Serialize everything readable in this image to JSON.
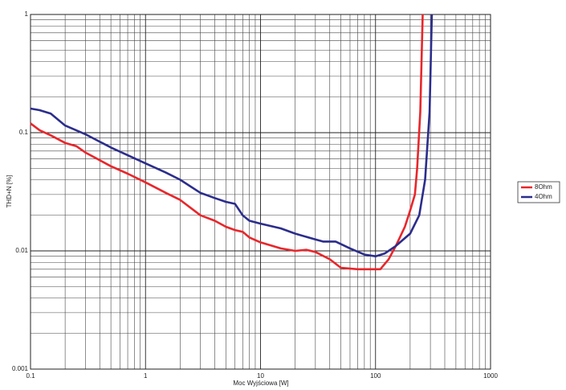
{
  "chart_data": {
    "type": "line",
    "x_label": "Moc Wyjściowa [W]",
    "y_label": "THD+N [%]",
    "xlim": [
      0.1,
      1000
    ],
    "ylim": [
      0.001,
      1
    ],
    "xticks": [
      0.1,
      1,
      10,
      100,
      1000
    ],
    "yticks": [
      0.001,
      0.01,
      0.1,
      1
    ],
    "xscale": "log",
    "yscale": "log",
    "grid": true,
    "legend": "right",
    "series": [
      {
        "name": "8Ohm",
        "color": "#e8262b",
        "x": [
          0.1,
          0.12,
          0.15,
          0.2,
          0.25,
          0.3,
          0.5,
          0.7,
          1,
          1.5,
          2,
          3,
          4,
          5,
          6,
          7,
          8,
          10,
          15,
          20,
          25,
          30,
          40,
          50,
          70,
          90,
          110,
          130,
          150,
          180,
          200,
          220,
          230,
          245,
          257
        ],
        "values": [
          0.12,
          0.105,
          0.095,
          0.082,
          0.077,
          0.068,
          0.052,
          0.045,
          0.038,
          0.031,
          0.027,
          0.02,
          0.018,
          0.016,
          0.015,
          0.0145,
          0.013,
          0.0118,
          0.0105,
          0.01,
          0.0102,
          0.0098,
          0.0085,
          0.0072,
          0.007,
          0.007,
          0.007,
          0.0085,
          0.011,
          0.016,
          0.022,
          0.03,
          0.05,
          0.15,
          1
        ]
      },
      {
        "name": "4Ohm",
        "color": "#2b2d8c",
        "x": [
          0.1,
          0.12,
          0.15,
          0.2,
          0.3,
          0.5,
          1,
          1.5,
          2,
          3,
          4,
          5,
          6,
          7,
          8,
          10,
          15,
          20,
          30,
          35,
          45,
          60,
          80,
          100,
          120,
          150,
          200,
          240,
          270,
          295,
          309
        ],
        "values": [
          0.16,
          0.155,
          0.145,
          0.115,
          0.097,
          0.075,
          0.055,
          0.046,
          0.04,
          0.031,
          0.028,
          0.026,
          0.025,
          0.02,
          0.018,
          0.017,
          0.0155,
          0.014,
          0.0125,
          0.012,
          0.012,
          0.0105,
          0.0093,
          0.009,
          0.0095,
          0.011,
          0.014,
          0.02,
          0.04,
          0.15,
          1
        ]
      }
    ]
  }
}
